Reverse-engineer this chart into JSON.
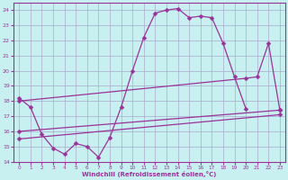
{
  "bg_color": "#c8f0f0",
  "grid_color": "#aaaacc",
  "line_color": "#993399",
  "xlabel": "Windchill (Refroidissement éolien,°C)",
  "xlim": [
    -0.5,
    23.5
  ],
  "ylim": [
    14,
    24.5
  ],
  "yticks": [
    14,
    15,
    16,
    17,
    18,
    19,
    20,
    21,
    22,
    23,
    24
  ],
  "xticks": [
    0,
    1,
    2,
    3,
    4,
    5,
    6,
    7,
    8,
    9,
    10,
    11,
    12,
    13,
    14,
    15,
    16,
    17,
    18,
    19,
    20,
    21,
    22,
    23
  ],
  "line1_x": [
    0,
    1,
    2,
    3,
    4,
    5,
    6,
    7,
    8,
    9,
    10,
    11,
    12,
    13,
    14,
    15,
    16,
    17,
    18,
    19,
    20
  ],
  "line1_y": [
    18.2,
    17.6,
    15.8,
    14.9,
    14.5,
    15.2,
    15.0,
    14.3,
    15.6,
    17.6,
    20.0,
    22.2,
    23.8,
    24.0,
    24.1,
    23.5,
    23.6,
    23.5,
    21.8,
    19.6,
    17.5
  ],
  "line2_x": [
    0,
    20,
    21,
    22,
    23
  ],
  "line2_y": [
    18.0,
    19.5,
    19.6,
    21.8,
    17.4
  ],
  "line3_x": [
    0,
    23
  ],
  "line3_y": [
    16.0,
    17.4
  ],
  "line4_x": [
    0,
    23
  ],
  "line4_y": [
    15.5,
    17.1
  ]
}
